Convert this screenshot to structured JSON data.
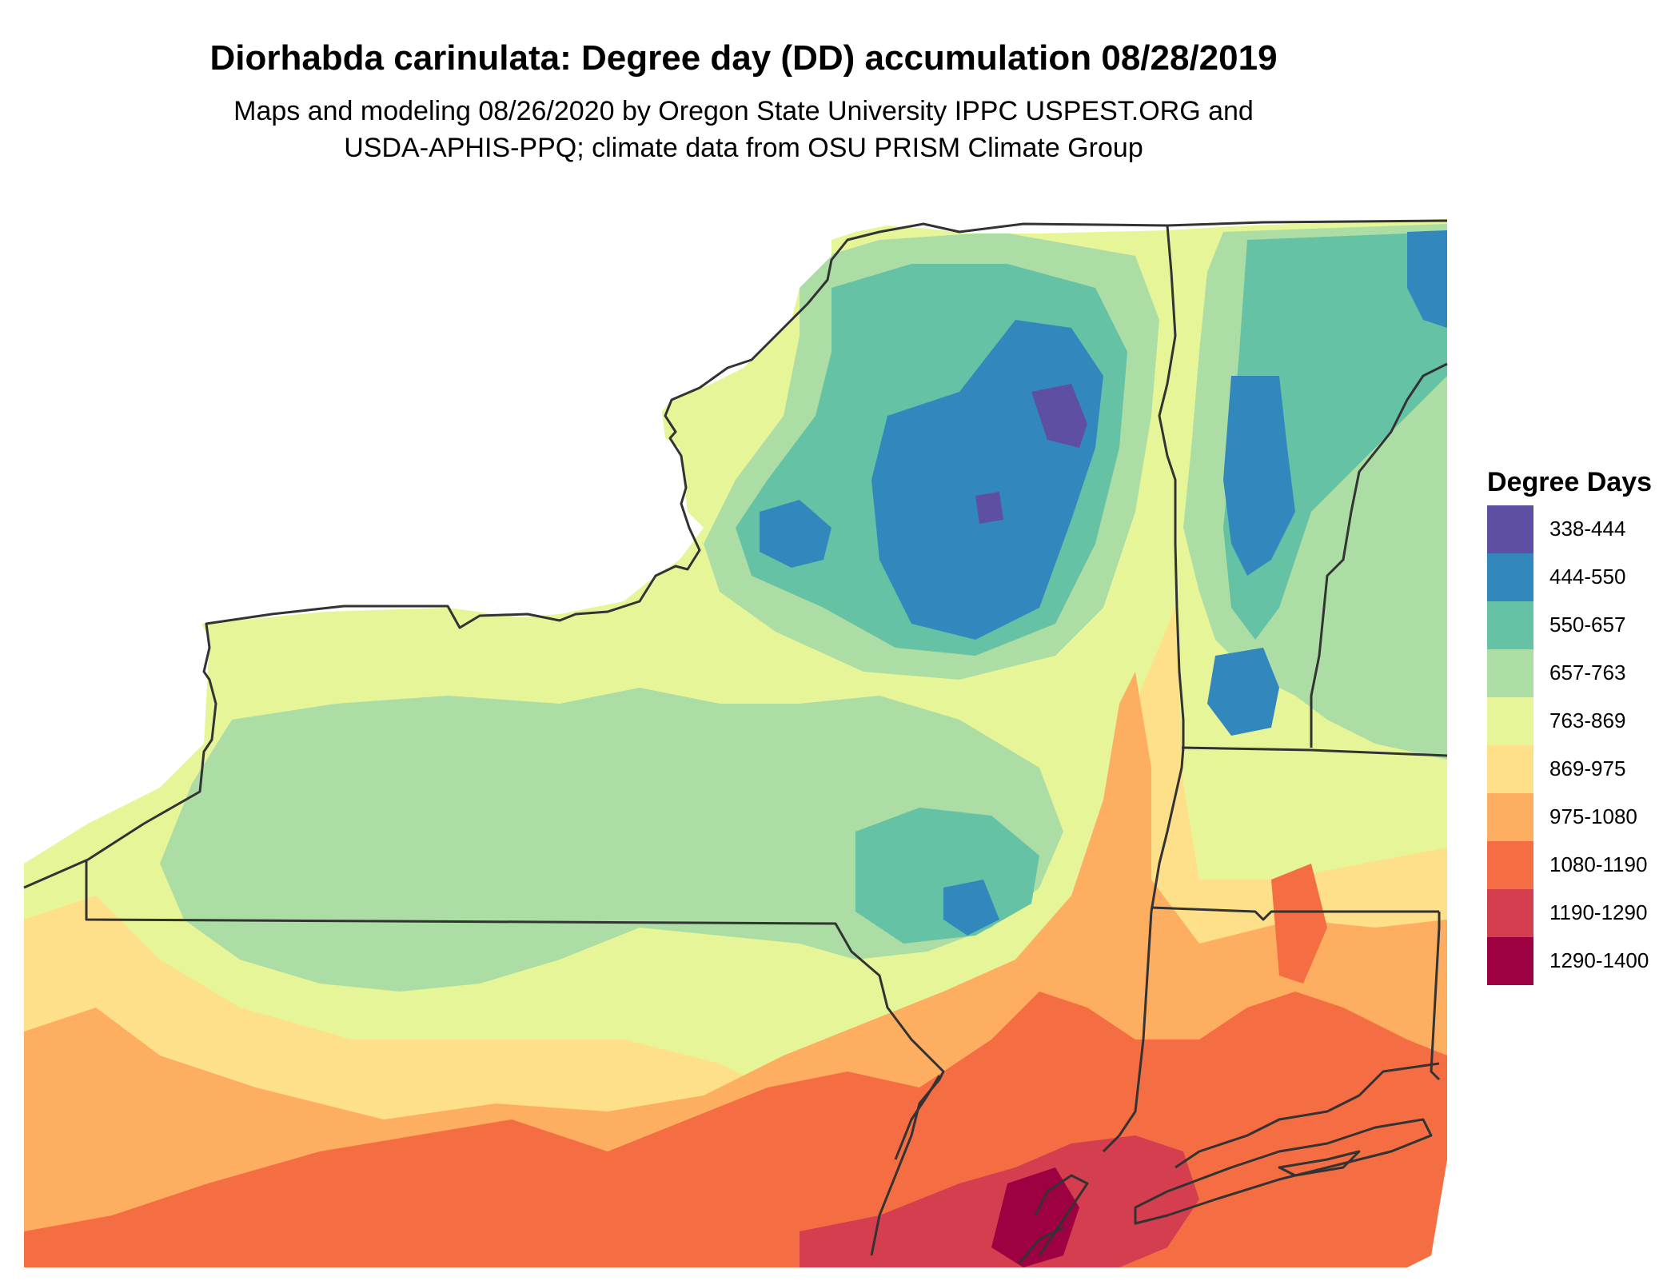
{
  "title": "Diorhabda carinulata: Degree day (DD) accumulation 08/28/2019",
  "subtitle_line1": "Maps and modeling 08/26/2020 by Oregon State University IPPC USPEST.ORG and",
  "subtitle_line2": "USDA-APHIS-PPQ; climate data from OSU PRISM Climate Group",
  "legend": {
    "title": "Degree Days",
    "items": [
      {
        "label": "338-444",
        "color": "#5e4fa2"
      },
      {
        "label": "444-550",
        "color": "#3288bd"
      },
      {
        "label": "550-657",
        "color": "#66c2a5"
      },
      {
        "label": "657-763",
        "color": "#abdda4"
      },
      {
        "label": "763-869",
        "color": "#e6f598"
      },
      {
        "label": "869-975",
        "color": "#fee08b"
      },
      {
        "label": "975-1080",
        "color": "#fdae61"
      },
      {
        "label": "1080-1190",
        "color": "#f46d43"
      },
      {
        "label": "1190-1290",
        "color": "#d53e4f"
      },
      {
        "label": "1290-1400",
        "color": "#9e0142"
      }
    ]
  }
}
